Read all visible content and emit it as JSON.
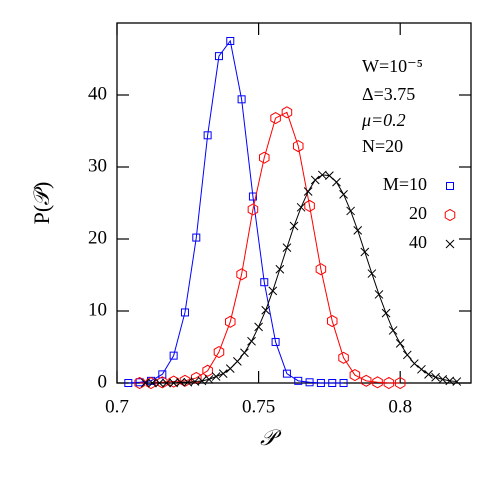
{
  "chart_data": {
    "type": "line",
    "xlabel": "𝒫",
    "ylabel": "P(𝒫)",
    "annotations": [
      "W=10⁻⁵",
      "Δ=3.75",
      "μ=0.2",
      "N=20"
    ],
    "xlim": [
      0.7,
      0.825
    ],
    "xticks": [
      0.7,
      0.75,
      0.8
    ],
    "ylim": [
      0,
      50
    ],
    "yticks": [
      0,
      10,
      20,
      30,
      40
    ],
    "legend": "right",
    "series": [
      {
        "name": "M=10",
        "color": "#0000ff",
        "marker": "square",
        "x": [
          0.704,
          0.708,
          0.712,
          0.716,
          0.72,
          0.724,
          0.728,
          0.732,
          0.736,
          0.74,
          0.744,
          0.748,
          0.752,
          0.756,
          0.76,
          0.764,
          0.768,
          0.772,
          0.776,
          0.78
        ],
        "values": [
          0,
          0.1,
          0.3,
          1.2,
          3.8,
          9.8,
          20.2,
          34.4,
          45.4,
          47.5,
          39.4,
          25.9,
          14.0,
          5.7,
          1.3,
          0.3,
          0.1,
          0,
          0,
          0
        ]
      },
      {
        "name": "20",
        "color": "#ff0000",
        "marker": "hexagon",
        "x": [
          0.708,
          0.712,
          0.716,
          0.72,
          0.724,
          0.728,
          0.732,
          0.736,
          0.74,
          0.744,
          0.748,
          0.752,
          0.756,
          0.76,
          0.764,
          0.768,
          0.772,
          0.776,
          0.78,
          0.784,
          0.788,
          0.792,
          0.796,
          0.8
        ],
        "values": [
          0,
          0,
          0.1,
          0.2,
          0.3,
          0.7,
          1.7,
          4.3,
          8.5,
          15.1,
          24.1,
          31.3,
          36.8,
          37.6,
          32.9,
          24.6,
          15.8,
          8.6,
          3.5,
          1.1,
          0.3,
          0.1,
          0,
          0
        ]
      },
      {
        "name": "40",
        "color": "#000000",
        "marker": "x",
        "x": [
          0.71,
          0.7125,
          0.715,
          0.7175,
          0.72,
          0.7225,
          0.725,
          0.7275,
          0.73,
          0.7325,
          0.735,
          0.7375,
          0.74,
          0.7425,
          0.745,
          0.7475,
          0.75,
          0.7525,
          0.755,
          0.7575,
          0.76,
          0.7625,
          0.765,
          0.7675,
          0.77,
          0.7725,
          0.775,
          0.7775,
          0.78,
          0.7825,
          0.785,
          0.7875,
          0.79,
          0.7925,
          0.795,
          0.7975,
          0.8,
          0.8025,
          0.805,
          0.8075,
          0.81,
          0.8125,
          0.815,
          0.8175,
          0.82
        ],
        "values": [
          0,
          0,
          0,
          0,
          0,
          0.1,
          0.1,
          0.2,
          0.3,
          0.5,
          0.9,
          1.3,
          2.0,
          3.0,
          4.2,
          5.8,
          7.8,
          10.1,
          12.8,
          15.8,
          18.8,
          21.8,
          24.4,
          26.6,
          28.2,
          28.9,
          28.8,
          27.9,
          26.2,
          23.9,
          21.2,
          18.2,
          15.2,
          12.3,
          9.7,
          7.3,
          5.5,
          3.9,
          2.7,
          1.9,
          1.2,
          0.8,
          0.5,
          0.3,
          0.2
        ]
      }
    ]
  }
}
